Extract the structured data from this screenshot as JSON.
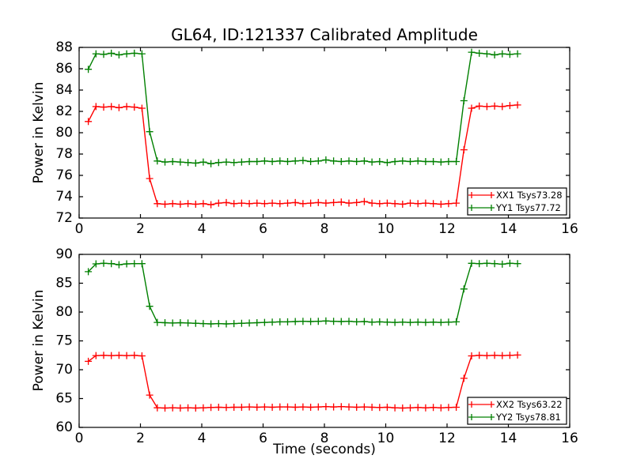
{
  "figure": {
    "background": "#ffffff",
    "axis_color": "#000000",
    "text_color": "#000000"
  },
  "chart_data": [
    {
      "type": "line",
      "title": "GL64, ID:121337 Calibrated Amplitude",
      "xlabel": "",
      "ylabel": "Power in Kelvin",
      "xlim": [
        0,
        16
      ],
      "ylim": [
        72,
        88
      ],
      "xticks": [
        0,
        2,
        4,
        6,
        8,
        10,
        12,
        14,
        16
      ],
      "yticks": [
        72,
        74,
        76,
        78,
        80,
        82,
        84,
        86,
        88
      ],
      "grid": false,
      "legend_position": "lower right",
      "x": [
        0.3,
        0.55,
        0.8,
        1.05,
        1.3,
        1.55,
        1.8,
        2.05,
        2.3,
        2.55,
        2.8,
        3.05,
        3.3,
        3.55,
        3.8,
        4.05,
        4.3,
        4.55,
        4.8,
        5.05,
        5.3,
        5.55,
        5.8,
        6.05,
        6.3,
        6.55,
        6.8,
        7.05,
        7.3,
        7.55,
        7.8,
        8.05,
        8.3,
        8.55,
        8.8,
        9.05,
        9.3,
        9.55,
        9.8,
        10.05,
        10.3,
        10.55,
        10.8,
        11.05,
        11.3,
        11.55,
        11.8,
        12.05,
        12.3,
        12.55,
        12.8,
        13.05,
        13.3,
        13.55,
        13.8,
        14.05,
        14.3
      ],
      "series": [
        {
          "name": "XX1 Tsys73.28",
          "color": "#ff0000",
          "marker": "plus",
          "values": [
            81.05,
            82.45,
            82.4,
            82.45,
            82.35,
            82.45,
            82.4,
            82.3,
            75.7,
            73.35,
            73.3,
            73.35,
            73.3,
            73.35,
            73.3,
            73.35,
            73.25,
            73.4,
            73.45,
            73.35,
            73.4,
            73.35,
            73.4,
            73.35,
            73.4,
            73.35,
            73.4,
            73.45,
            73.35,
            73.4,
            73.45,
            73.4,
            73.45,
            73.5,
            73.4,
            73.45,
            73.55,
            73.4,
            73.35,
            73.4,
            73.35,
            73.3,
            73.4,
            73.35,
            73.4,
            73.35,
            73.3,
            73.35,
            73.4,
            78.4,
            82.3,
            82.5,
            82.45,
            82.5,
            82.45,
            82.55,
            82.6
          ]
        },
        {
          "name": "YY1 Tsys77.72",
          "color": "#008000",
          "marker": "plus",
          "values": [
            85.95,
            87.4,
            87.35,
            87.45,
            87.3,
            87.4,
            87.45,
            87.4,
            80.1,
            77.35,
            77.25,
            77.3,
            77.25,
            77.2,
            77.15,
            77.25,
            77.1,
            77.2,
            77.25,
            77.2,
            77.25,
            77.3,
            77.3,
            77.35,
            77.3,
            77.35,
            77.3,
            77.35,
            77.4,
            77.3,
            77.35,
            77.45,
            77.35,
            77.3,
            77.35,
            77.3,
            77.35,
            77.25,
            77.3,
            77.2,
            77.3,
            77.35,
            77.3,
            77.35,
            77.3,
            77.3,
            77.25,
            77.3,
            77.3,
            83.0,
            87.55,
            87.45,
            87.4,
            87.3,
            87.4,
            87.35,
            87.4
          ]
        }
      ]
    },
    {
      "type": "line",
      "title": "",
      "xlabel": "Time (seconds)",
      "ylabel": "Power in Kelvin",
      "xlim": [
        0,
        16
      ],
      "ylim": [
        60,
        90
      ],
      "xticks": [
        0,
        2,
        4,
        6,
        8,
        10,
        12,
        14,
        16
      ],
      "yticks": [
        60,
        65,
        70,
        75,
        80,
        85,
        90
      ],
      "grid": false,
      "legend_position": "lower right",
      "x": [
        0.3,
        0.55,
        0.8,
        1.05,
        1.3,
        1.55,
        1.8,
        2.05,
        2.3,
        2.55,
        2.8,
        3.05,
        3.3,
        3.55,
        3.8,
        4.05,
        4.3,
        4.55,
        4.8,
        5.05,
        5.3,
        5.55,
        5.8,
        6.05,
        6.3,
        6.55,
        6.8,
        7.05,
        7.3,
        7.55,
        7.8,
        8.05,
        8.3,
        8.55,
        8.8,
        9.05,
        9.3,
        9.55,
        9.8,
        10.05,
        10.3,
        10.55,
        10.8,
        11.05,
        11.3,
        11.55,
        11.8,
        12.05,
        12.3,
        12.55,
        12.8,
        13.05,
        13.3,
        13.55,
        13.8,
        14.05,
        14.3
      ],
      "series": [
        {
          "name": "XX2 Tsys63.22",
          "color": "#ff0000",
          "marker": "plus",
          "values": [
            71.45,
            72.45,
            72.5,
            72.45,
            72.5,
            72.45,
            72.5,
            72.4,
            65.6,
            63.4,
            63.35,
            63.4,
            63.35,
            63.4,
            63.35,
            63.4,
            63.45,
            63.5,
            63.45,
            63.5,
            63.5,
            63.55,
            63.5,
            63.55,
            63.5,
            63.55,
            63.55,
            63.5,
            63.55,
            63.5,
            63.55,
            63.6,
            63.55,
            63.6,
            63.55,
            63.5,
            63.55,
            63.5,
            63.45,
            63.5,
            63.4,
            63.35,
            63.4,
            63.45,
            63.4,
            63.45,
            63.4,
            63.45,
            63.5,
            68.5,
            72.4,
            72.5,
            72.45,
            72.5,
            72.45,
            72.5,
            72.55
          ]
        },
        {
          "name": "YY2 Tsys78.81",
          "color": "#008000",
          "marker": "plus",
          "values": [
            87.0,
            88.35,
            88.45,
            88.4,
            88.2,
            88.35,
            88.4,
            88.4,
            81.0,
            78.2,
            78.15,
            78.1,
            78.15,
            78.1,
            78.05,
            78.0,
            77.95,
            78.0,
            77.95,
            78.0,
            78.05,
            78.1,
            78.15,
            78.2,
            78.25,
            78.3,
            78.3,
            78.35,
            78.4,
            78.35,
            78.4,
            78.45,
            78.4,
            78.35,
            78.4,
            78.3,
            78.35,
            78.25,
            78.3,
            78.25,
            78.2,
            78.25,
            78.2,
            78.25,
            78.2,
            78.25,
            78.2,
            78.25,
            78.3,
            84.0,
            88.45,
            88.4,
            88.45,
            88.4,
            88.3,
            88.45,
            88.4
          ]
        }
      ]
    }
  ]
}
